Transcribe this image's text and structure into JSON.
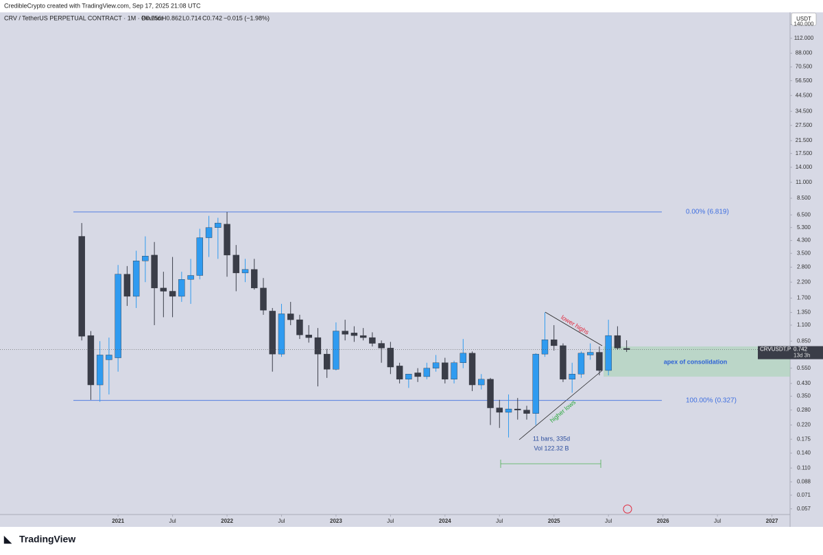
{
  "chart_data": {
    "type": "candlestick",
    "credit": "CredibleCrypto created with TradingView.com, Sep 17, 2025 21:08 UTC",
    "symbol": "CRV / TetherUS PERPETUAL CONTRACT · 1M · Binance",
    "legend_open": "O0.756",
    "legend_high": "H0.862",
    "legend_low": "L0.714",
    "legend_close": "C0.742",
    "legend_change": "−0.015 (−1.98%)",
    "currency": "USDT",
    "brand": "TradingView",
    "log_scale": true,
    "grid": false,
    "x": [
      "2020-09",
      "2020-10",
      "2020-11",
      "2020-12",
      "2021-01",
      "2021-02",
      "2021-03",
      "2021-04",
      "2021-05",
      "2021-06",
      "2021-07",
      "2021-08",
      "2021-09",
      "2021-10",
      "2021-11",
      "2021-12",
      "2022-01",
      "2022-02",
      "2022-03",
      "2022-04",
      "2022-05",
      "2022-06",
      "2022-07",
      "2022-08",
      "2022-09",
      "2022-10",
      "2022-11",
      "2022-12",
      "2023-01",
      "2023-02",
      "2023-03",
      "2023-04",
      "2023-05",
      "2023-06",
      "2023-07",
      "2023-08",
      "2023-09",
      "2023-10",
      "2023-11",
      "2023-12",
      "2024-01",
      "2024-02",
      "2024-03",
      "2024-04",
      "2024-05",
      "2024-06",
      "2024-07",
      "2024-08",
      "2024-09",
      "2024-10",
      "2024-11",
      "2024-12",
      "2025-01",
      "2025-02",
      "2025-03",
      "2025-04",
      "2025-05",
      "2025-06",
      "2025-07",
      "2025-08",
      "2025-09"
    ],
    "series": [
      {
        "name": "CRVUSDT.P",
        "up_color": "#2f9bf0",
        "down_color": "#3a3d48",
        "open": [
          4.6,
          0.93,
          0.42,
          0.63,
          0.65,
          2.5,
          1.75,
          3.1,
          3.4,
          2.0,
          1.9,
          1.75,
          2.3,
          2.45,
          4.5,
          5.3,
          5.6,
          3.4,
          2.55,
          2.7,
          2.0,
          1.38,
          0.69,
          1.32,
          1.2,
          0.94,
          0.9,
          0.69,
          0.54,
          1.0,
          0.97,
          0.93,
          0.9,
          0.82,
          0.76,
          0.57,
          0.46,
          0.51,
          0.48,
          0.55,
          0.6,
          0.46,
          0.6,
          0.7,
          0.42,
          0.46,
          0.29,
          0.27,
          0.285,
          0.28,
          0.265,
          0.69,
          0.87,
          0.79,
          0.46,
          0.5,
          0.68,
          0.71,
          0.53,
          0.93,
          0.756
        ],
        "high": [
          5.7,
          1.0,
          0.85,
          0.9,
          2.9,
          2.85,
          3.65,
          4.6,
          4.2,
          2.6,
          3.3,
          2.6,
          3.2,
          5.2,
          6.4,
          6.2,
          6.819,
          4.0,
          3.2,
          3.2,
          2.35,
          1.45,
          1.55,
          1.6,
          1.3,
          1.1,
          1.05,
          0.75,
          1.15,
          1.2,
          1.08,
          1.05,
          0.98,
          0.86,
          0.84,
          0.6,
          0.5,
          0.55,
          0.6,
          0.68,
          0.65,
          0.62,
          0.88,
          0.72,
          0.5,
          0.47,
          0.33,
          0.36,
          0.34,
          0.3,
          0.7,
          1.35,
          1.1,
          0.82,
          0.6,
          0.72,
          0.82,
          0.78,
          1.2,
          1.08,
          0.862
        ],
        "low": [
          0.86,
          0.33,
          0.32,
          0.36,
          0.52,
          1.5,
          1.45,
          2.2,
          1.1,
          1.25,
          1.25,
          1.6,
          1.55,
          2.3,
          3.3,
          3.2,
          2.4,
          1.9,
          2.2,
          1.95,
          1.3,
          0.52,
          0.66,
          1.1,
          0.88,
          0.83,
          0.41,
          0.47,
          0.53,
          0.86,
          0.84,
          0.86,
          0.78,
          0.6,
          0.5,
          0.43,
          0.4,
          0.44,
          0.46,
          0.52,
          0.43,
          0.43,
          0.55,
          0.38,
          0.39,
          0.22,
          0.21,
          0.18,
          0.24,
          0.24,
          0.22,
          0.66,
          0.73,
          0.44,
          0.37,
          0.47,
          0.63,
          0.49,
          0.49,
          0.74,
          0.714
        ],
        "close": [
          0.92,
          0.42,
          0.68,
          0.68,
          2.5,
          1.75,
          3.1,
          3.35,
          2.0,
          1.9,
          1.75,
          2.3,
          2.45,
          4.5,
          5.3,
          5.7,
          3.4,
          2.55,
          2.7,
          2.0,
          1.4,
          0.69,
          1.32,
          1.2,
          0.94,
          0.9,
          0.69,
          0.54,
          1.0,
          0.95,
          0.93,
          0.9,
          0.82,
          0.76,
          0.56,
          0.46,
          0.5,
          0.48,
          0.55,
          0.6,
          0.46,
          0.6,
          0.7,
          0.42,
          0.46,
          0.29,
          0.27,
          0.285,
          0.28,
          0.265,
          0.69,
          0.87,
          0.79,
          0.46,
          0.5,
          0.7,
          0.71,
          0.53,
          0.93,
          0.76,
          0.742
        ]
      }
    ],
    "last_price": 0.742,
    "countdown": "13d 3h",
    "fib_levels": [
      {
        "value": 6.819,
        "label": "0.00% (6.819)"
      },
      {
        "value": 0.327,
        "label": "100.00% (0.327)"
      }
    ],
    "annotations": {
      "lower_highs": "lower highs",
      "higher_lows": "higher lows",
      "range_bars": "11 bars, 335d",
      "range_volume": "Vol 122.32 B",
      "apex": "apex of consolidation"
    },
    "xlim": [
      "2019-12",
      "2027-03"
    ],
    "xticks": [
      {
        "value": "2021-01",
        "label": "2021"
      },
      {
        "value": "2021-07",
        "label": "Jul"
      },
      {
        "value": "2022-01",
        "label": "2022"
      },
      {
        "value": "2022-07",
        "label": "Jul"
      },
      {
        "value": "2023-01",
        "label": "2023"
      },
      {
        "value": "2023-07",
        "label": "Jul"
      },
      {
        "value": "2024-01",
        "label": "2024"
      },
      {
        "value": "2024-07",
        "label": "Jul"
      },
      {
        "value": "2025-01",
        "label": "2025"
      },
      {
        "value": "2025-07",
        "label": "Jul"
      },
      {
        "value": "2026-01",
        "label": "2026"
      },
      {
        "value": "2026-07",
        "label": "Jul"
      },
      {
        "value": "2027-01",
        "label": "2027"
      }
    ],
    "ylim": [
      0.052,
      170
    ],
    "yticks": [
      {
        "value": 140,
        "label": "140.000"
      },
      {
        "value": 112,
        "label": "112.000"
      },
      {
        "value": 88,
        "label": "88.000"
      },
      {
        "value": 70.5,
        "label": "70.500"
      },
      {
        "value": 56.5,
        "label": "56.500"
      },
      {
        "value": 44.5,
        "label": "44.500"
      },
      {
        "value": 34.5,
        "label": "34.500"
      },
      {
        "value": 27.5,
        "label": "27.500"
      },
      {
        "value": 21.5,
        "label": "21.500"
      },
      {
        "value": 17.5,
        "label": "17.500"
      },
      {
        "value": 14,
        "label": "14.000"
      },
      {
        "value": 11,
        "label": "11.000"
      },
      {
        "value": 8.5,
        "label": "8.500"
      },
      {
        "value": 6.5,
        "label": "6.500"
      },
      {
        "value": 5.3,
        "label": "5.300"
      },
      {
        "value": 4.3,
        "label": "4.300"
      },
      {
        "value": 3.5,
        "label": "3.500"
      },
      {
        "value": 2.8,
        "label": "2.800"
      },
      {
        "value": 2.2,
        "label": "2.200"
      },
      {
        "value": 1.7,
        "label": "1.700"
      },
      {
        "value": 1.35,
        "label": "1.350"
      },
      {
        "value": 1.1,
        "label": "1.100"
      },
      {
        "value": 0.85,
        "label": "0.850"
      },
      {
        "value": 0.55,
        "label": "0.550"
      },
      {
        "value": 0.43,
        "label": "0.430"
      },
      {
        "value": 0.35,
        "label": "0.350"
      },
      {
        "value": 0.28,
        "label": "0.280"
      },
      {
        "value": 0.22,
        "label": "0.220"
      },
      {
        "value": 0.175,
        "label": "0.175"
      },
      {
        "value": 0.14,
        "label": "0.140"
      },
      {
        "value": 0.11,
        "label": "0.110"
      },
      {
        "value": 0.088,
        "label": "0.088"
      },
      {
        "value": 0.071,
        "label": "0.071"
      },
      {
        "value": 0.057,
        "label": "0.057"
      }
    ]
  }
}
